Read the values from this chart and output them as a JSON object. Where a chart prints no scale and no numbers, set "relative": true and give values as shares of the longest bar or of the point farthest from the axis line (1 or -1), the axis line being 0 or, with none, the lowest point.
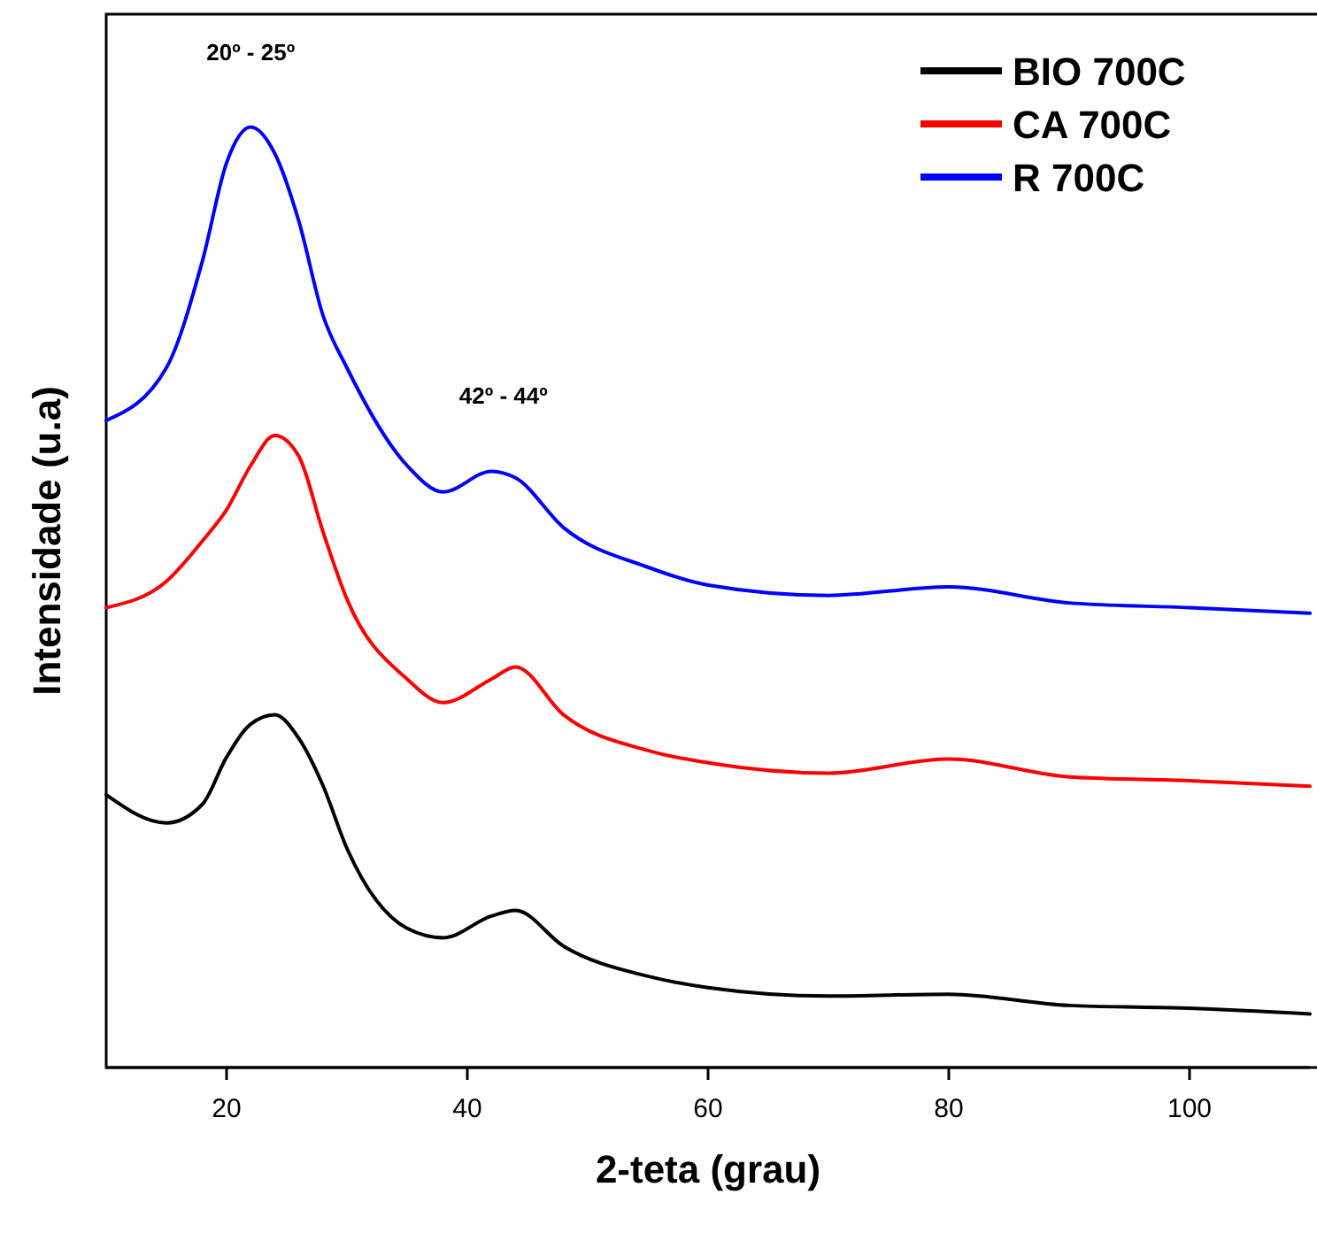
{
  "chart_data": {
    "type": "line",
    "relative": true,
    "xlabel": "2-teta (grau)",
    "ylabel": "Intensidade (u.a)",
    "xlim": [
      10,
      110
    ],
    "xticks": [
      20,
      40,
      60,
      80,
      100
    ],
    "legend": "top right",
    "tick_labels": "x",
    "x": [
      10,
      15,
      18,
      20,
      22,
      24,
      26,
      28,
      30,
      35,
      38,
      42,
      44,
      48,
      55,
      60,
      70,
      80,
      90,
      100,
      110
    ],
    "series": [
      {
        "name": "BIO 700C",
        "color": "#000000",
        "values": [
          0.29,
          0.26,
          0.28,
          0.33,
          0.365,
          0.375,
          0.35,
          0.3,
          0.233,
          0.148,
          0.138,
          0.161,
          0.167,
          0.129,
          0.097,
          0.085,
          0.076,
          0.078,
          0.066,
          0.063,
          0.057
        ]
      },
      {
        "name": "CA 700C",
        "color": "#ff0000",
        "values": [
          0.489,
          0.517,
          0.56,
          0.593,
          0.64,
          0.672,
          0.65,
          0.57,
          0.498,
          0.413,
          0.388,
          0.413,
          0.426,
          0.375,
          0.337,
          0.324,
          0.313,
          0.328,
          0.309,
          0.305,
          0.299
        ]
      },
      {
        "name": "R 700C",
        "color": "#0000ff",
        "values": [
          0.688,
          0.744,
          0.858,
          0.962,
          1,
          0.972,
          0.9,
          0.8,
          0.744,
          0.64,
          0.612,
          0.634,
          0.627,
          0.574,
          0.532,
          0.513,
          0.502,
          0.511,
          0.494,
          0.489,
          0.483
        ]
      }
    ],
    "annotations": [
      {
        "text": "20º - 25º",
        "x": 22,
        "y": 1
      },
      {
        "text": "42º - 44º",
        "x": 43,
        "y": 0.634
      }
    ]
  }
}
